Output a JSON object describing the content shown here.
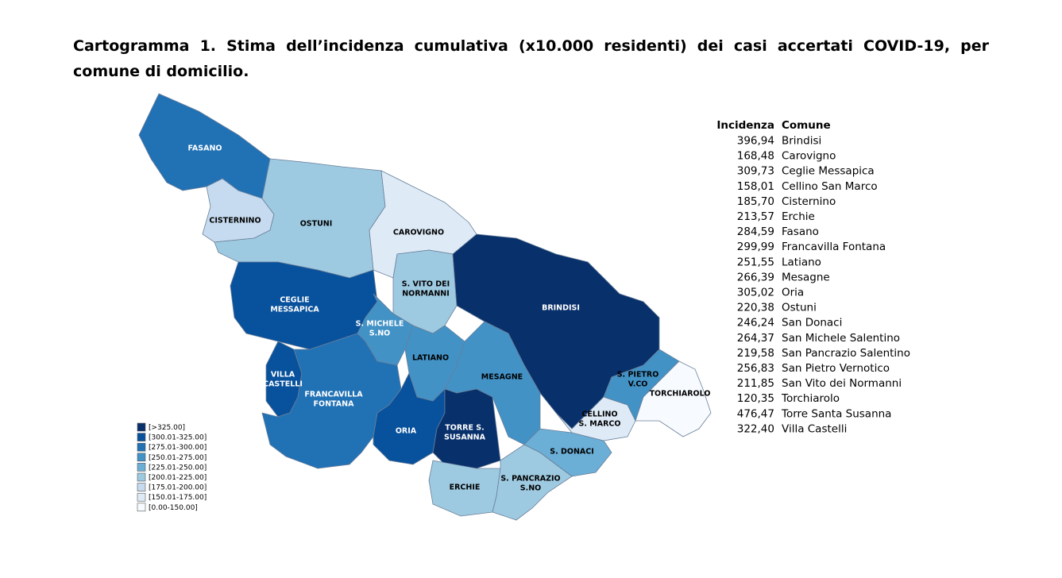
{
  "title": "Cartogramma 1. Stima dell’incidenza cumulativa (x10.000 residenti) dei casi accertati COVID-19, per comune di domicilio.",
  "legend": [
    {
      "label": "[>325.00]",
      "color": "#08306b"
    },
    {
      "label": "[300.01-325.00]",
      "color": "#08519c"
    },
    {
      "label": "[275.01-300.00]",
      "color": "#2171b5"
    },
    {
      "label": "[250.01-275.00]",
      "color": "#4292c6"
    },
    {
      "label": "[225.01-250.00]",
      "color": "#6baed6"
    },
    {
      "label": "[200.01-225.00]",
      "color": "#9ecae1"
    },
    {
      "label": "[175.01-200.00]",
      "color": "#c6dbef"
    },
    {
      "label": "[150.01-175.00]",
      "color": "#deebf7"
    },
    {
      "label": "[0.00-150.00]",
      "color": "#f7fbff"
    }
  ],
  "map": {
    "regions": [
      {
        "label": [
          "FASANO"
        ],
        "color": "#2171b5"
      },
      {
        "label": [
          "CISTERNINO"
        ],
        "color": "#c6dbef"
      },
      {
        "label": [
          "OSTUNI"
        ],
        "color": "#9ecae1"
      },
      {
        "label": [
          "CAROVIGNO"
        ],
        "color": "#deebf7"
      },
      {
        "label": [
          "S. VITO DEI",
          "NORMANNI"
        ],
        "color": "#9ecae1"
      },
      {
        "label": [
          "BRINDISI"
        ],
        "color": "#08306b"
      },
      {
        "label": [
          "CEGLIE",
          "MESSAPICA"
        ],
        "color": "#08519c"
      },
      {
        "label": [
          "S. MICHELE",
          "S.NO"
        ],
        "color": "#4292c6"
      },
      {
        "label": [
          "LATIANO"
        ],
        "color": "#4292c6"
      },
      {
        "label": [
          "MESAGNE"
        ],
        "color": "#4292c6"
      },
      {
        "label": [
          "VILLA",
          "CASTELLI"
        ],
        "color": "#08519c"
      },
      {
        "label": [
          "FRANCAVILLA",
          "FONTANA"
        ],
        "color": "#2171b5"
      },
      {
        "label": [
          "ORIA"
        ],
        "color": "#08519c"
      },
      {
        "label": [
          "TORRE S.",
          "SUSANNA"
        ],
        "color": "#08306b"
      },
      {
        "label": [
          "ERCHIE"
        ],
        "color": "#9ecae1"
      },
      {
        "label": [
          "S. PANCRAZIO",
          "S.NO"
        ],
        "color": "#9ecae1"
      },
      {
        "label": [
          "S. DONACI"
        ],
        "color": "#6baed6"
      },
      {
        "label": [
          "CELLINO",
          "S. MARCO"
        ],
        "color": "#deebf7"
      },
      {
        "label": [
          "S. PIETRO",
          "V.CO"
        ],
        "color": "#4292c6"
      },
      {
        "label": [
          "TORCHIAROLO"
        ],
        "color": "#f7fbff"
      }
    ]
  },
  "table": {
    "header": [
      "Incidenza",
      "Comune"
    ],
    "rows": [
      [
        "396,94",
        "Brindisi"
      ],
      [
        "168,48",
        "Carovigno"
      ],
      [
        "309,73",
        "Ceglie Messapica"
      ],
      [
        "158,01",
        "Cellino San Marco"
      ],
      [
        "185,70",
        "Cisternino"
      ],
      [
        "213,57",
        "Erchie"
      ],
      [
        "284,59",
        "Fasano"
      ],
      [
        "299,99",
        "Francavilla Fontana"
      ],
      [
        "251,55",
        "Latiano"
      ],
      [
        "266,39",
        "Mesagne"
      ],
      [
        "305,02",
        "Oria"
      ],
      [
        "220,38",
        "Ostuni"
      ],
      [
        "246,24",
        "San Donaci"
      ],
      [
        "264,37",
        "San Michele Salentino"
      ],
      [
        "219,58",
        "San Pancrazio Salentino"
      ],
      [
        "256,83",
        "San Pietro Vernotico"
      ],
      [
        "211,85",
        "San Vito dei Normanni"
      ],
      [
        "120,35",
        "Torchiarolo"
      ],
      [
        "476,47",
        "Torre Santa Susanna"
      ],
      [
        "322,40",
        "Villa Castelli"
      ]
    ]
  }
}
